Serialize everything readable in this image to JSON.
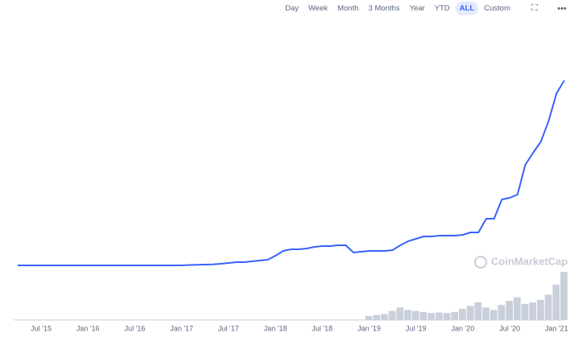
{
  "toolbar": [
    {
      "label": "Day",
      "selected": false
    },
    {
      "label": "Week",
      "selected": false
    },
    {
      "label": "Month",
      "selected": false
    },
    {
      "label": "3 Months",
      "selected": false
    },
    {
      "label": "Year",
      "selected": false
    },
    {
      "label": "YTD",
      "selected": false
    },
    {
      "label": "ALL",
      "selected": true
    },
    {
      "label": "Custom",
      "selected": false
    }
  ],
  "watermark": "CoinMarketCap",
  "chart_data": {
    "type": "line",
    "color": "#3861fb",
    "volume_color": "#c9cfdb",
    "categories": [
      null,
      null,
      null,
      "Jul '15",
      null,
      null,
      null,
      null,
      null,
      "Jan '16",
      null,
      null,
      null,
      null,
      null,
      "Jul '16",
      null,
      null,
      null,
      null,
      null,
      "Jan '17",
      null,
      null,
      null,
      null,
      null,
      "Jul '17",
      null,
      null,
      null,
      null,
      null,
      "Jan '18",
      null,
      null,
      null,
      null,
      null,
      "Jul '18",
      null,
      null,
      null,
      null,
      null,
      "Jan '19",
      null,
      null,
      null,
      null,
      null,
      "Jul '19",
      null,
      null,
      null,
      null,
      null,
      "Jan '20",
      null,
      null,
      null,
      null,
      null,
      "Jul '20",
      null,
      null,
      null,
      null,
      null,
      "Jan '21",
      null
    ],
    "values": [
      4,
      4,
      4,
      4,
      4,
      4,
      4,
      4,
      4,
      4,
      4,
      4,
      4,
      4,
      4,
      4,
      4,
      4,
      4,
      4,
      4,
      4,
      4.2,
      4.3,
      4.4,
      4.5,
      4.8,
      5.2,
      5.6,
      5.6,
      6,
      6.4,
      6.8,
      8.8,
      11.2,
      12,
      12,
      12.4,
      13.2,
      13.6,
      13.6,
      14,
      14,
      10.4,
      10.8,
      11.2,
      11.2,
      11.2,
      11.6,
      14,
      16,
      17.2,
      18.4,
      18.4,
      18.8,
      18.8,
      18.8,
      19.2,
      20.4,
      20.4,
      27.2,
      27.2,
      36.8,
      37.6,
      39.2,
      54,
      60,
      65.6,
      76,
      89.6,
      96
    ],
    "ylim": [
      0,
      100
    ],
    "volume": [
      1,
      1,
      1,
      1,
      1,
      1,
      1,
      1,
      1,
      1,
      1,
      1,
      1,
      1,
      1,
      1,
      1,
      1,
      1,
      1,
      1,
      1,
      1,
      1,
      1,
      1,
      1,
      1,
      1,
      1,
      1,
      1,
      1,
      1,
      1,
      1,
      1,
      1,
      1,
      1,
      1,
      1,
      1,
      1,
      1,
      8,
      10,
      12,
      18,
      25,
      20,
      18,
      16,
      14,
      15,
      14,
      16,
      22,
      28,
      35,
      25,
      20,
      30,
      38,
      45,
      32,
      35,
      40,
      50,
      70,
      95
    ],
    "volume_ylim": [
      0,
      100
    ]
  }
}
